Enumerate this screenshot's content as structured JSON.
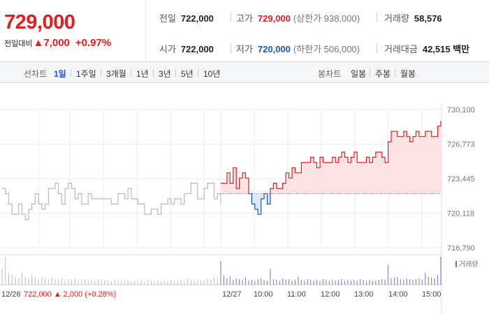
{
  "price": {
    "current": "729,000",
    "change_label": "전일대비",
    "change_arrow": "▲",
    "change_value": "7,000",
    "change_pct": "+0.97%"
  },
  "stats": {
    "prev_close": {
      "label": "전일",
      "value": "722,000"
    },
    "high": {
      "label": "고가",
      "value": "729,000",
      "sub": "(상한가 938,000)"
    },
    "volume": {
      "label": "거래량",
      "value": "58,576"
    },
    "open": {
      "label": "시가",
      "value": "722,000"
    },
    "low": {
      "label": "저가",
      "value": "720,000",
      "sub": "(하한가 506,000)"
    },
    "amount": {
      "label": "거래대금",
      "value": "42,515 백만"
    }
  },
  "toolbar": {
    "line_chart_label": "선차트",
    "line_periods": [
      "1일",
      "1주일",
      "3개월",
      "1년",
      "3년",
      "5년",
      "10년"
    ],
    "active_period": "1일",
    "candle_chart_label": "봉차트",
    "candle_periods": [
      "일봉",
      "주봉",
      "월봉"
    ]
  },
  "colors": {
    "up": "#e41e1e",
    "down": "#1c55c9",
    "prev_day_line": "#b8b8b8",
    "volume": "#7b6fc0"
  },
  "chart_data": {
    "type": "line",
    "y_ticks": [
      "730,100",
      "726,773",
      "723,445",
      "720,118",
      "716,790"
    ],
    "ylim": [
      716790,
      730100
    ],
    "base_price": 722000,
    "x_ticks": [
      "12/26",
      "12/27",
      "10:00",
      "11:00",
      "12:00",
      "13:00",
      "14:00",
      "15:00"
    ],
    "prev_day_note": {
      "date": "12/26",
      "price": "722,000",
      "arrow": "▲",
      "change": "2,000",
      "pct": "(+0.28%)"
    },
    "volume_legend": "거래량",
    "prev_day_series": [
      722500,
      722000,
      721000,
      720000,
      720000,
      721000,
      720000,
      719500,
      720500,
      721000,
      722000,
      721000,
      720500,
      721000,
      722500,
      722500,
      723000,
      722000,
      721000,
      722500,
      723000,
      722500,
      721500,
      722000,
      721000,
      721000,
      722000,
      721500,
      721500,
      721500,
      721500,
      721500,
      721500,
      721000,
      721000,
      722000,
      722000,
      721500,
      722500,
      721500,
      721500,
      721000,
      721000,
      720000,
      720000,
      720500,
      720500,
      720000,
      721000,
      721000,
      721500,
      721000,
      721500,
      721500,
      721000,
      722000,
      722000,
      723000,
      723000,
      721500,
      721500,
      722500,
      723000,
      723000,
      721500,
      722000,
      721000
    ],
    "today_series": [
      723000,
      723000,
      724000,
      723000,
      724500,
      722500,
      723500,
      724000,
      723500,
      722000,
      721000,
      720500,
      720000,
      721500,
      722000,
      721000,
      722500,
      723000,
      722500,
      722500,
      723000,
      724000,
      723500,
      724500,
      724000,
      724000,
      725000,
      725000,
      725000,
      725500,
      725000,
      724500,
      725500,
      725000,
      725000,
      725000,
      725500,
      725000,
      725500,
      726000,
      725500,
      725000,
      725500,
      726000,
      725000,
      725000,
      725000,
      725500,
      725000,
      725500,
      726000,
      726000,
      725500,
      725000,
      727000,
      728000,
      728000,
      727500,
      727500,
      728000,
      727500,
      727000,
      727500,
      728000,
      727500,
      727500,
      728000,
      728000,
      727500,
      727500,
      728500,
      729000
    ],
    "prev_day_volume": [
      20,
      35,
      15,
      12,
      10,
      8,
      15,
      10,
      8,
      12,
      9,
      7,
      10,
      8,
      6,
      9,
      7,
      6,
      8,
      5,
      7,
      6,
      8,
      5,
      6,
      7,
      5,
      6,
      5,
      7,
      5,
      6,
      5,
      4,
      6,
      5,
      4,
      5,
      6,
      4,
      5,
      4,
      5,
      4,
      6,
      5,
      4,
      5,
      4,
      5,
      4,
      6,
      5,
      4,
      6,
      5,
      8,
      6,
      5,
      7,
      5,
      6,
      8,
      6,
      9,
      8,
      12
    ],
    "today_volume": [
      30,
      12,
      8,
      10,
      6,
      8,
      7,
      6,
      9,
      5,
      6,
      5,
      7,
      8,
      6,
      5,
      20,
      7,
      6,
      5,
      8,
      6,
      7,
      5,
      6,
      10,
      6,
      5,
      7,
      6,
      5,
      6,
      5,
      7,
      6,
      5,
      6,
      5,
      6,
      7,
      5,
      6,
      5,
      6,
      5,
      7,
      6,
      5,
      6,
      5,
      5,
      6,
      7,
      6,
      25,
      8,
      9,
      10,
      7,
      6,
      8,
      7,
      6,
      7,
      8,
      6,
      15,
      10,
      9,
      8,
      12,
      35
    ]
  }
}
